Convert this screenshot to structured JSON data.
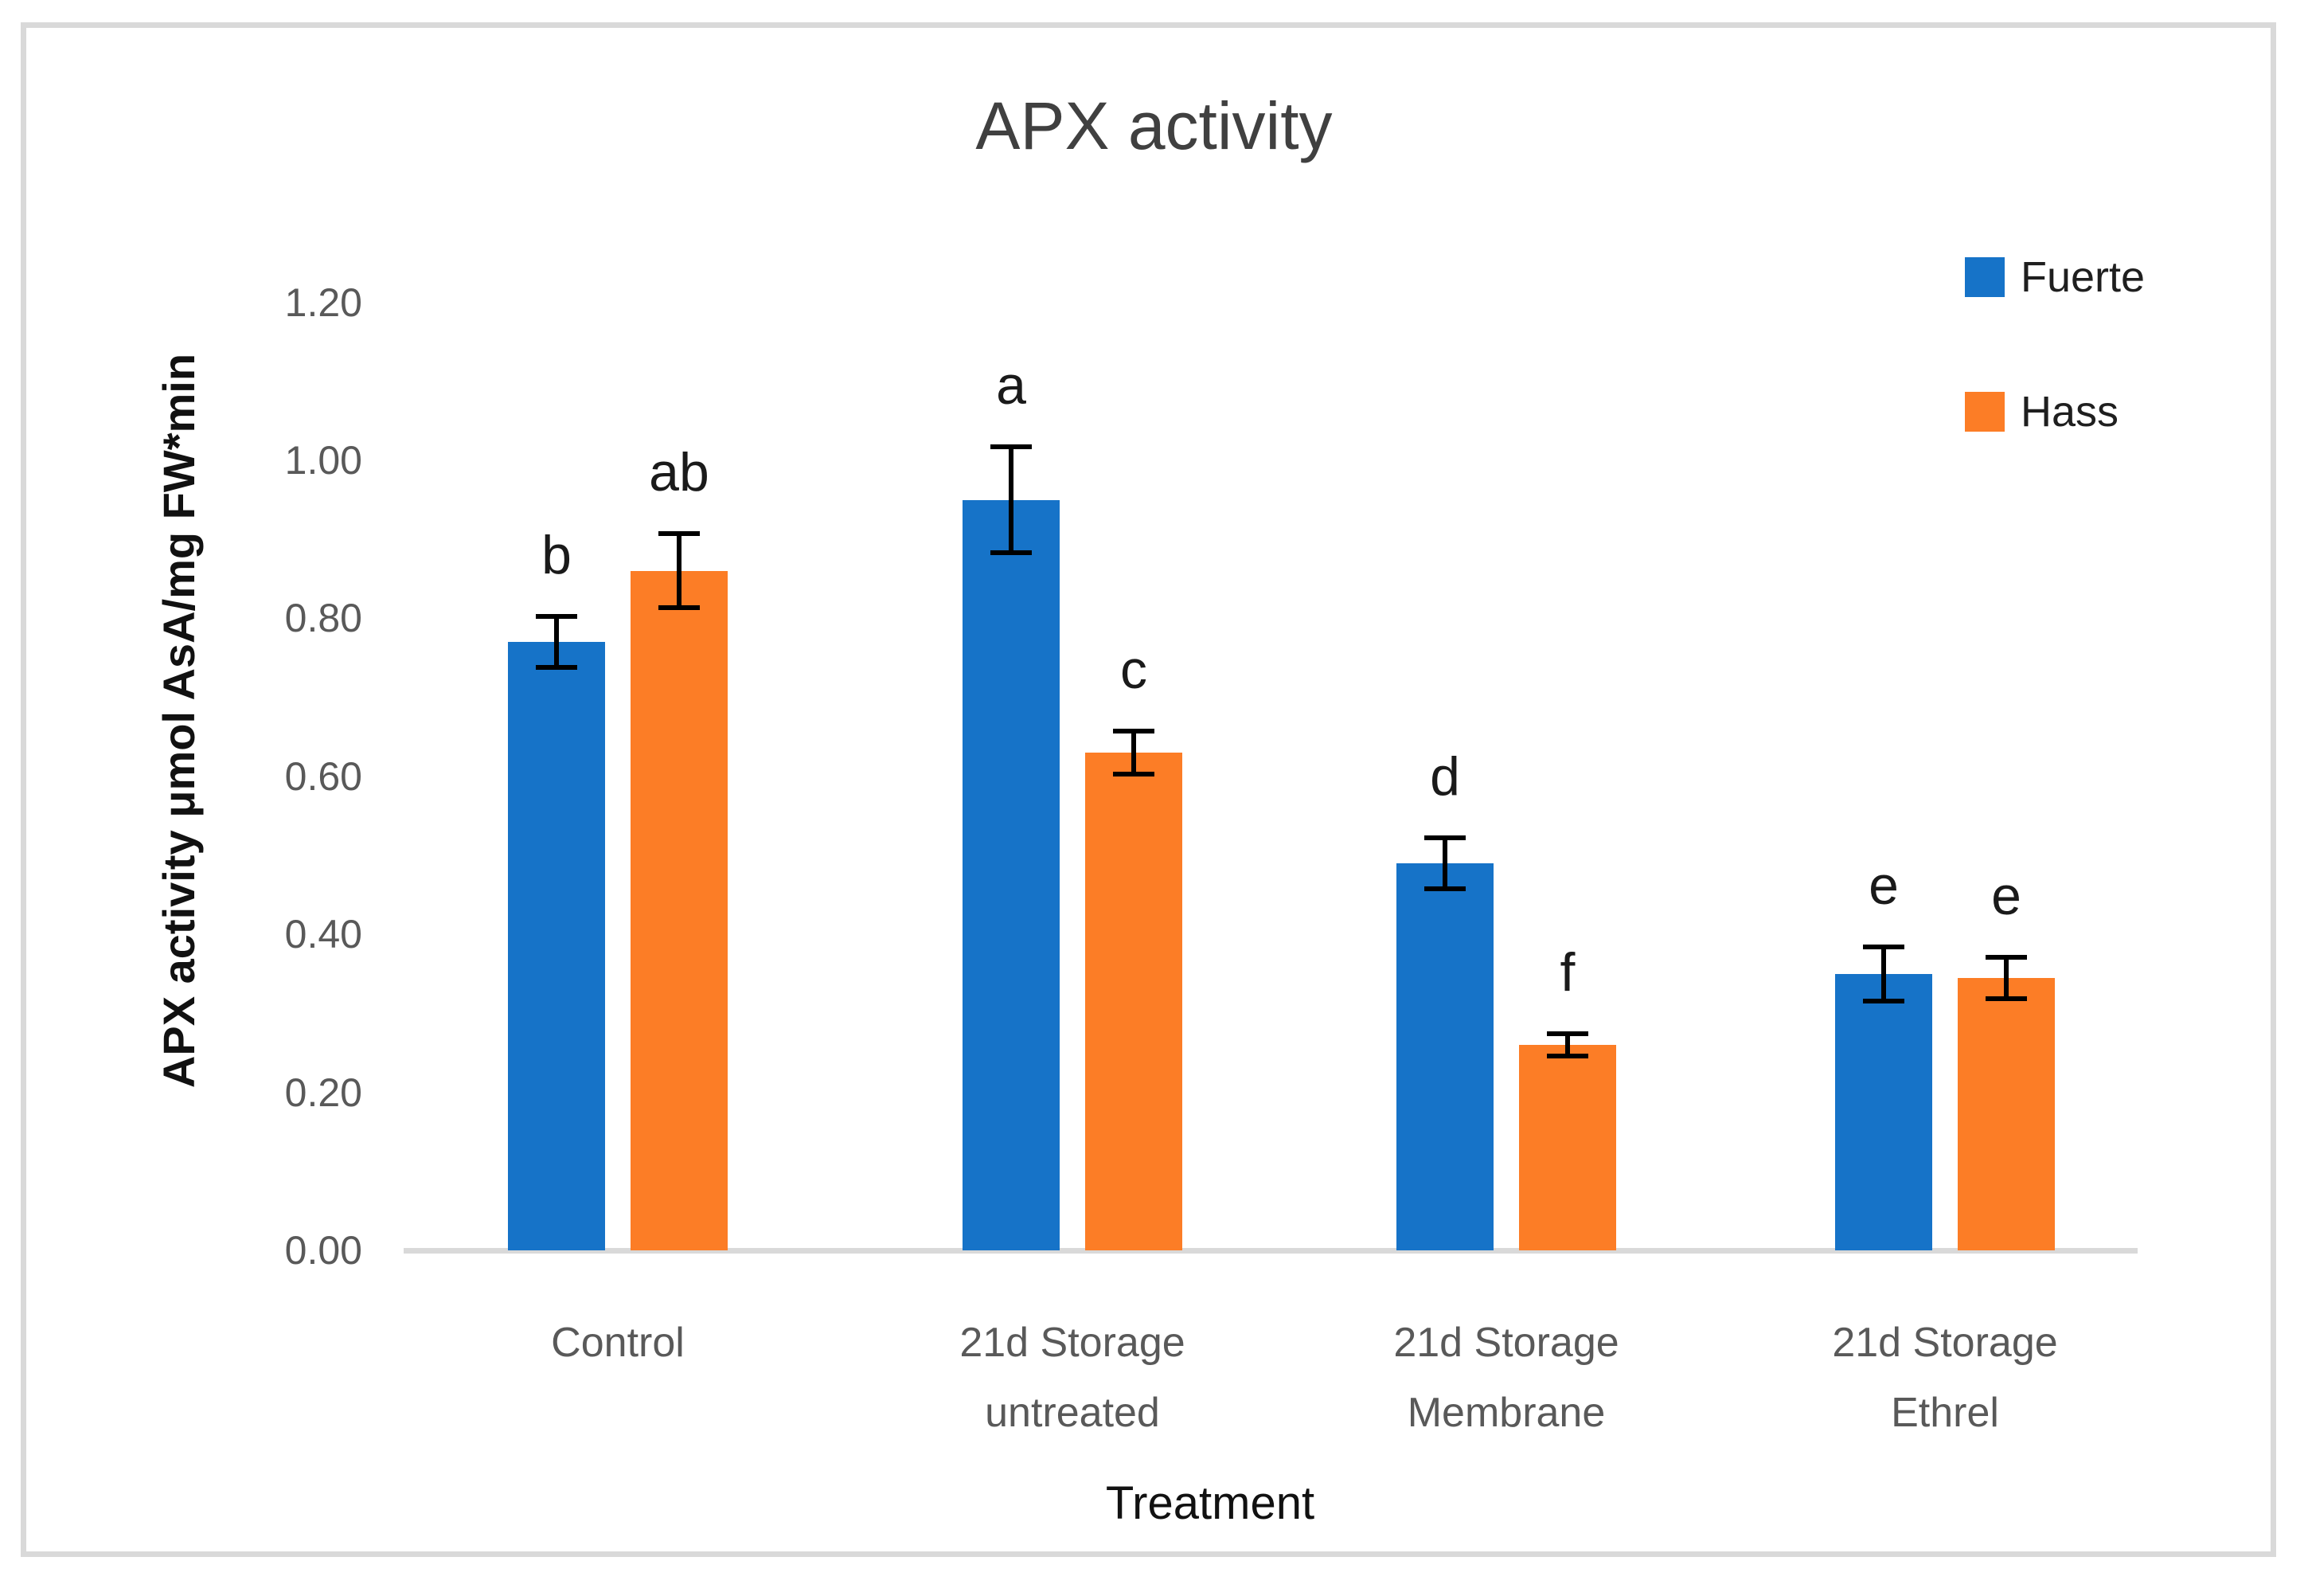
{
  "chart_data": {
    "type": "bar",
    "title": "APX activity",
    "xlabel": "Treatment",
    "ylabel": "APX activity μmol AsA/mg FW*min",
    "categories": [
      "Control",
      "21d Storage\nuntreated",
      "21d Storage\nMembrane",
      "21d Storage\nEthrel"
    ],
    "series": [
      {
        "name": "Fuerte",
        "color": "#1673c8",
        "values": [
          0.77,
          0.95,
          0.49,
          0.35
        ],
        "errors": [
          0.035,
          0.07,
          0.035,
          0.037
        ],
        "sig_letters": [
          "b",
          "a",
          "d",
          "e"
        ]
      },
      {
        "name": "Hass",
        "color": "#fc7d26",
        "values": [
          0.86,
          0.63,
          0.26,
          0.345
        ],
        "errors": [
          0.05,
          0.03,
          0.017,
          0.029
        ],
        "sig_letters": [
          "ab",
          "c",
          "f",
          "e"
        ]
      }
    ],
    "ylim": [
      0.0,
      1.2
    ],
    "yticks": [
      "0.00",
      "0.20",
      "0.40",
      "0.60",
      "0.80",
      "1.00",
      "1.20"
    ],
    "grid": false,
    "legend_position": "top-right",
    "error_bar_color": "#000000",
    "axis_line_color": "#d9d9d9"
  }
}
